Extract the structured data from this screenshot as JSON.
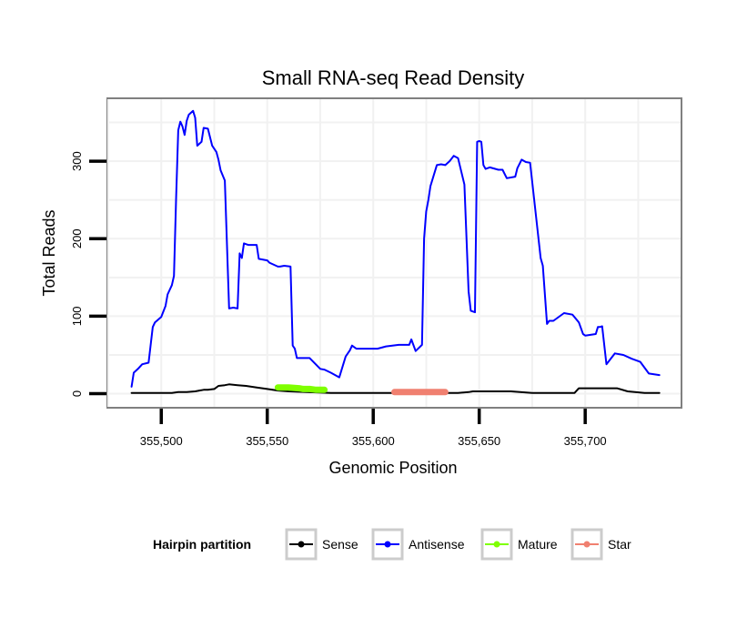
{
  "chart_data": {
    "type": "line",
    "title": "Small RNA-seq Read Density",
    "xlabel": "Genomic Position",
    "ylabel": "Total Reads",
    "xlim": [
      355475,
      355745
    ],
    "ylim": [
      -17,
      380
    ],
    "x_ticks": [
      355500,
      355550,
      355600,
      355650,
      355700
    ],
    "x_tick_labels": [
      "355,500",
      "355,550",
      "355,600",
      "355,650",
      "355,700"
    ],
    "y_ticks": [
      0,
      100,
      200,
      300
    ],
    "y_tick_labels": [
      "0",
      "100",
      "200",
      "300"
    ],
    "grid": true,
    "legend": {
      "title": "Hairpin partition",
      "position": "bottom",
      "entries": [
        "Sense",
        "Antisense",
        "Mature",
        "Star"
      ]
    },
    "series": [
      {
        "name": "Sense",
        "color": "#000000",
        "width": 2,
        "x": [
          355486,
          355505,
          355508,
          355512,
          355516,
          355518,
          355520,
          355522,
          355525,
          355527,
          355530,
          355532,
          355536,
          355540,
          355545,
          355550,
          355555,
          355560,
          355580,
          355620,
          355640,
          355645,
          355647,
          355650,
          355655,
          355665,
          355675,
          355695,
          355697,
          355705,
          355715,
          355720,
          355728,
          355735
        ],
        "values": [
          1,
          1,
          2,
          2,
          3,
          4,
          5,
          5,
          6,
          10,
          11,
          12,
          11,
          10,
          8,
          6,
          4,
          3,
          1,
          1,
          1,
          2,
          3,
          3,
          3,
          3,
          1,
          1,
          7,
          7,
          7,
          3,
          1,
          1
        ]
      },
      {
        "name": "Antisense",
        "color": "#0000ff",
        "width": 2,
        "x": [
          355486,
          355487,
          355489,
          355491,
          355494,
          355496,
          355497,
          355500,
          355502,
          355503,
          355505,
          355506,
          355507,
          355508,
          355509,
          355510,
          355511,
          355512,
          355513,
          355515,
          355516,
          355517,
          355519,
          355520,
          355522,
          355524,
          355526,
          355527,
          355528,
          355530,
          355532,
          355534,
          355536,
          355537,
          355538,
          355539,
          355541,
          355545,
          355546,
          355550,
          355551,
          355555,
          355556,
          355558,
          355561,
          355562,
          355563,
          355564,
          355568,
          355570,
          355575,
          355577,
          355580,
          355584,
          355587,
          355589,
          355590,
          355592,
          355594,
          355596,
          355602,
          355606,
          355612,
          355617,
          355618,
          355620,
          355623,
          355624,
          355625,
          355626,
          355627,
          355630,
          355632,
          355634,
          355636,
          355638,
          355640,
          355643,
          355645,
          355646,
          355648,
          355649,
          355650,
          355651,
          355652,
          355653,
          355655,
          355659,
          355661,
          355663,
          355667,
          355668,
          355670,
          355672,
          355674,
          355679,
          355680,
          355682,
          355683,
          355685,
          355690,
          355694,
          355697,
          355699,
          355700,
          355705,
          355706,
          355707,
          355708,
          355710,
          355714,
          355718,
          355722,
          355726,
          355730,
          355735
        ],
        "values": [
          9,
          27,
          32,
          38,
          40,
          86,
          92,
          99,
          113,
          128,
          140,
          152,
          250,
          340,
          351,
          345,
          334,
          352,
          360,
          365,
          356,
          320,
          325,
          343,
          342,
          320,
          312,
          302,
          288,
          275,
          110,
          111,
          110,
          181,
          175,
          194,
          192,
          192,
          174,
          172,
          169,
          164,
          164,
          165,
          164,
          62,
          58,
          46,
          46,
          46,
          32,
          31,
          27,
          21,
          48,
          56,
          62,
          58,
          58,
          58,
          58,
          61,
          63,
          63,
          70,
          55,
          63,
          200,
          235,
          250,
          268,
          295,
          296,
          295,
          300,
          307,
          304,
          270,
          132,
          107,
          105,
          325,
          326,
          325,
          295,
          290,
          292,
          289,
          289,
          278,
          280,
          291,
          302,
          299,
          298,
          175,
          165,
          90,
          94,
          94,
          104,
          102,
          92,
          77,
          75,
          77,
          86,
          86,
          87,
          38,
          52,
          50,
          45,
          41,
          26,
          24
        ]
      },
      {
        "name": "Mature",
        "color": "#7fff00",
        "width": 7,
        "x": [
          355555,
          355560,
          355565,
          355567,
          355570,
          355573,
          355575,
          355577
        ],
        "values": [
          8,
          8,
          7,
          6,
          6,
          5,
          5,
          5
        ]
      },
      {
        "name": "Star",
        "color": "#f08070",
        "width": 7,
        "x": [
          355610,
          355620,
          355625,
          355630,
          355632,
          355634
        ],
        "values": [
          2,
          2,
          2,
          2,
          2,
          2
        ]
      }
    ]
  }
}
